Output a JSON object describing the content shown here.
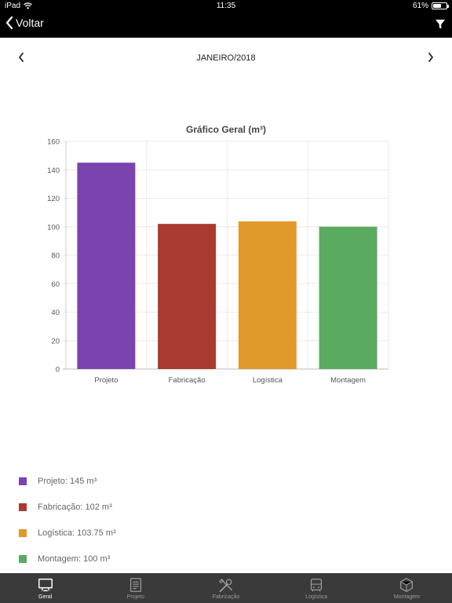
{
  "status_bar": {
    "device": "iPad",
    "time": "11:35",
    "battery": "61%",
    "battery_level": 0.61
  },
  "nav": {
    "back_label": "Voltar"
  },
  "period": {
    "label": "JANEIRO/2018"
  },
  "chart_data": {
    "type": "bar",
    "title": "Gráfico Geral (m³)",
    "categories": [
      "Projeto",
      "Fabricação",
      "Logística",
      "Montagem"
    ],
    "values": [
      145,
      102,
      103.75,
      100
    ],
    "colors": [
      "#7b43b0",
      "#a83a30",
      "#e09a2c",
      "#5aaa60"
    ],
    "ylim": [
      0,
      160
    ],
    "yticks": [
      0,
      20,
      40,
      60,
      80,
      100,
      120,
      140,
      160
    ],
    "grid": true
  },
  "legend": [
    {
      "text": "Projeto: 145 m³",
      "color": "#7b43b0"
    },
    {
      "text": "Fabricação: 102 m³",
      "color": "#a83a30"
    },
    {
      "text": "Logística: 103.75 m³",
      "color": "#e09a2c"
    },
    {
      "text": "Montagem: 100 m³",
      "color": "#5aaa60"
    }
  ],
  "tabs": [
    {
      "label": "Geral",
      "icon": "monitor-icon",
      "active": true
    },
    {
      "label": "Projeto",
      "icon": "document-icon",
      "active": false
    },
    {
      "label": "Fabricação",
      "icon": "tools-icon",
      "active": false
    },
    {
      "label": "Logística",
      "icon": "bus-icon",
      "active": false
    },
    {
      "label": "Montagem",
      "icon": "cube-icon",
      "active": false
    }
  ]
}
